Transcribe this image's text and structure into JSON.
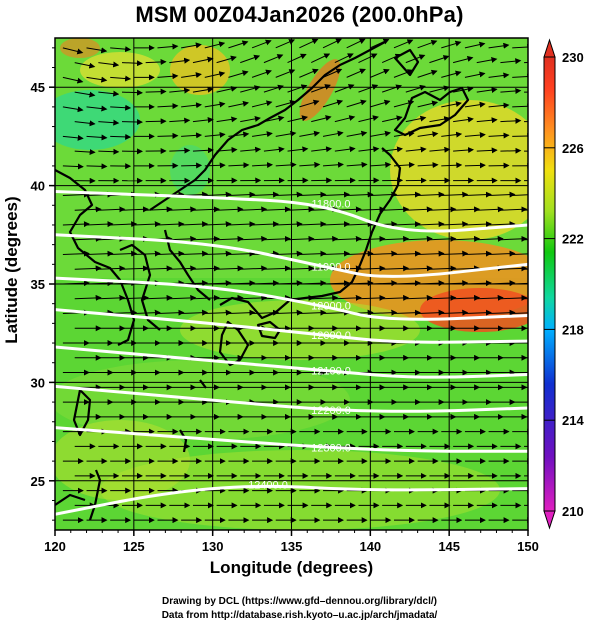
{
  "header": {
    "title": "MSM 00Z04Jan2026 (200.0hPa)"
  },
  "axes": {
    "xlabel": "Longitude (degrees)",
    "ylabel": "Latitude  (degrees)",
    "x_ticks": [
      "120",
      "125",
      "130",
      "135",
      "140",
      "145",
      "150"
    ],
    "y_ticks": [
      "25",
      "30",
      "35",
      "40",
      "45"
    ],
    "x_range": [
      120,
      150
    ],
    "y_range": [
      22.5,
      47.5
    ]
  },
  "colorbar": {
    "ticks": [
      "210",
      "214",
      "218",
      "222",
      "226",
      "230"
    ],
    "range": [
      210,
      230
    ],
    "colors": [
      "#e020c0",
      "#7010c0",
      "#1030d0",
      "#00b0ff",
      "#10d8a0",
      "#10c810",
      "#a0e020",
      "#f0e010",
      "#ff9020",
      "#ff4020",
      "#e03020"
    ]
  },
  "contours": {
    "color": "#ffffff",
    "labels": [
      "11800.0",
      "11900.0",
      "12000.0",
      "12000.0",
      "12100.0",
      "12200.0",
      "12300.0",
      "12400.0"
    ],
    "lines": [
      {
        "label": "11800.0",
        "pts": [
          [
            120,
            39.7
          ],
          [
            130,
            39.4
          ],
          [
            137,
            39.1
          ],
          [
            142,
            37.5
          ],
          [
            150,
            38.0
          ]
        ]
      },
      {
        "label": "11900.0",
        "pts": [
          [
            120,
            37.5
          ],
          [
            130,
            37.1
          ],
          [
            137,
            35.9
          ],
          [
            141,
            35.2
          ],
          [
            150,
            36.0
          ]
        ]
      },
      {
        "label": "12000.0",
        "pts": [
          [
            120,
            35.3
          ],
          [
            130,
            34.9
          ],
          [
            137,
            33.9
          ],
          [
            141,
            33.1
          ],
          [
            150,
            33.4
          ]
        ]
      },
      {
        "label": "12000.0",
        "pts": [
          [
            120,
            33.7
          ],
          [
            130,
            33.0
          ],
          [
            137,
            32.4
          ],
          [
            142,
            32.0
          ],
          [
            150,
            32.1
          ]
        ]
      },
      {
        "label": "12100.0",
        "pts": [
          [
            120,
            31.8
          ],
          [
            130,
            31.1
          ],
          [
            137,
            30.6
          ],
          [
            143,
            30.2
          ],
          [
            150,
            30.4
          ]
        ]
      },
      {
        "label": "12200.0",
        "pts": [
          [
            120,
            29.8
          ],
          [
            130,
            29.1
          ],
          [
            137,
            28.6
          ],
          [
            143,
            28.5
          ],
          [
            150,
            28.7
          ]
        ]
      },
      {
        "label": "12300.0",
        "pts": [
          [
            120,
            27.7
          ],
          [
            130,
            27.1
          ],
          [
            137,
            26.7
          ],
          [
            143,
            26.5
          ],
          [
            150,
            26.5
          ]
        ]
      },
      {
        "label": "12400.0",
        "pts": [
          [
            120,
            23.3
          ],
          [
            127,
            24.4
          ],
          [
            133,
            24.8
          ],
          [
            140,
            24.5
          ],
          [
            150,
            24.6
          ]
        ]
      }
    ]
  },
  "credits": {
    "line1": "Drawing by DCL (https://www.gfd–dennou.org/library/dcl/)",
    "line2": "Data from http://database.rish.kyoto–u.ac.jp/arch/jmadata/"
  }
}
